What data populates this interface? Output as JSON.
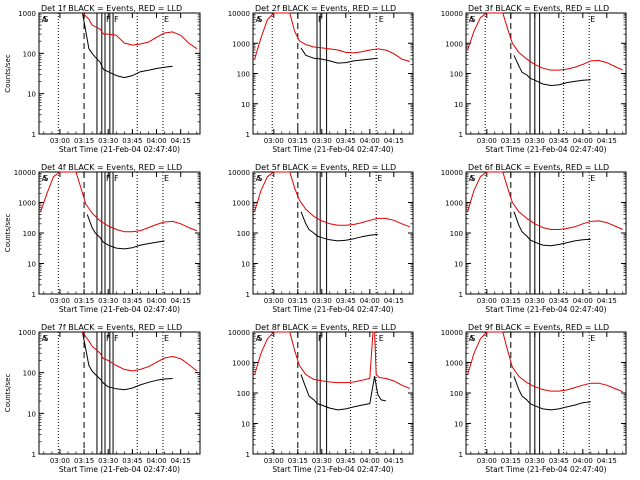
{
  "chart_data": [
    {
      "type": "line",
      "title": "Det 1f BLACK = Events, RED = LLD",
      "xlabel": "Start Time (21-Feb-04 02:47:40)",
      "ylabel": "Counts/sec",
      "y_scale": "log",
      "ylim": [
        1,
        1000
      ],
      "y_ticks": [
        "1",
        "10",
        "100",
        "1000"
      ],
      "x_ticks": [
        "03:00",
        "03:15",
        "03:30",
        "03:45",
        "04:00",
        "04:15"
      ],
      "region_labels": [
        "A",
        "S",
        "F",
        "F",
        "E"
      ],
      "series": [
        {
          "color": "#000000",
          "x": [
            "02:50",
            "02:55",
            "03:00",
            "03:05",
            "03:10",
            "03:14",
            "03:18",
            "03:20",
            "03:22",
            "03:25",
            "03:27",
            "03:30",
            "03:35",
            "03:40",
            "03:45",
            "03:50",
            "03:55",
            "04:00",
            "04:05",
            "04:10"
          ],
          "y": [
            1000,
            1000,
            1000,
            1000,
            1000,
            1000,
            130,
            100,
            80,
            60,
            40,
            35,
            28,
            25,
            28,
            35,
            38,
            42,
            45,
            48
          ]
        },
        {
          "color": "#e00000",
          "x": [
            "03:14",
            "03:18",
            "03:20",
            "03:25",
            "03:27",
            "03:30",
            "03:35",
            "03:40",
            "03:45",
            "03:50",
            "03:55",
            "04:00",
            "04:05",
            "04:10",
            "04:15",
            "04:20",
            "04:25"
          ],
          "y": [
            1000,
            700,
            500,
            400,
            300,
            300,
            280,
            180,
            160,
            170,
            190,
            250,
            320,
            340,
            280,
            180,
            130
          ]
        }
      ]
    },
    {
      "type": "line",
      "title": "Det 2f BLACK = Events, RED = LLD",
      "xlabel": "Start Time (21-Feb-04 02:47:40)",
      "ylabel": "",
      "y_scale": "log",
      "ylim": [
        1,
        10000
      ],
      "y_ticks": [
        "1",
        "10",
        "100",
        "1000",
        "10000"
      ],
      "x_ticks": [
        "03:00",
        "03:15",
        "03:30",
        "03:45",
        "04:00",
        "04:15"
      ],
      "region_labels": [
        "A",
        "S",
        "F",
        "E"
      ],
      "series": [
        {
          "color": "#000000",
          "x": [
            "03:17",
            "03:20",
            "03:25",
            "03:30",
            "03:35",
            "03:40",
            "03:45",
            "03:50",
            "03:55",
            "04:00",
            "04:05"
          ],
          "y": [
            700,
            400,
            320,
            300,
            260,
            220,
            230,
            260,
            280,
            300,
            320
          ]
        },
        {
          "color": "#e00000",
          "x": [
            "02:48",
            "02:52",
            "02:56",
            "03:00",
            "03:05",
            "03:10",
            "03:13",
            "03:16",
            "03:20",
            "03:25",
            "03:30",
            "03:35",
            "03:40",
            "03:45",
            "03:50",
            "03:55",
            "04:00",
            "04:05",
            "04:10",
            "04:15",
            "04:20",
            "04:25"
          ],
          "y": [
            300,
            1500,
            6000,
            10000,
            10000,
            10000,
            2500,
            1200,
            900,
            750,
            700,
            650,
            600,
            500,
            480,
            520,
            600,
            650,
            600,
            450,
            300,
            250
          ]
        }
      ]
    },
    {
      "type": "line",
      "title": "Det 3f BLACK = Events, RED = LLD",
      "xlabel": "Start Time (21-Feb-04 02:47:40)",
      "ylabel": "",
      "y_scale": "log",
      "ylim": [
        1,
        10000
      ],
      "y_ticks": [
        "1",
        "10",
        "100",
        "1000",
        "10000"
      ],
      "x_ticks": [
        "03:00",
        "03:15",
        "03:30",
        "03:45",
        "04:00",
        "04:15"
      ],
      "region_labels": [
        "A",
        "S",
        "E"
      ],
      "series": [
        {
          "color": "#000000",
          "x": [
            "03:17",
            "03:20",
            "03:22",
            "03:25",
            "03:27",
            "03:30",
            "03:35",
            "03:40",
            "03:45",
            "03:50",
            "03:55",
            "04:00",
            "04:05"
          ],
          "y": [
            400,
            180,
            110,
            90,
            70,
            60,
            45,
            40,
            42,
            50,
            55,
            60,
            62
          ]
        },
        {
          "color": "#e00000",
          "x": [
            "02:48",
            "02:52",
            "02:56",
            "03:00",
            "03:05",
            "03:10",
            "03:13",
            "03:16",
            "03:20",
            "03:25",
            "03:30",
            "03:35",
            "03:40",
            "03:45",
            "03:50",
            "03:55",
            "04:00",
            "04:05",
            "04:10",
            "04:15",
            "04:20",
            "04:25"
          ],
          "y": [
            600,
            2500,
            7000,
            10000,
            10000,
            10000,
            3000,
            1000,
            500,
            300,
            200,
            150,
            130,
            130,
            140,
            160,
            200,
            260,
            270,
            230,
            170,
            130
          ]
        }
      ]
    },
    {
      "type": "line",
      "title": "Det 4f BLACK = Events, RED = LLD",
      "xlabel": "Start Time (21-Feb-04 02:47:40)",
      "ylabel": "Counts/sec",
      "y_scale": "log",
      "ylim": [
        1,
        10000
      ],
      "y_ticks": [
        "1",
        "10",
        "100",
        "1000",
        "10000"
      ],
      "x_ticks": [
        "03:00",
        "03:15",
        "03:30",
        "03:45",
        "04:00",
        "04:15"
      ],
      "region_labels": [
        "A",
        "S",
        "F",
        "F",
        "E"
      ],
      "series": [
        {
          "color": "#000000",
          "x": [
            "03:17",
            "03:20",
            "03:22",
            "03:25",
            "03:27",
            "03:30",
            "03:35",
            "03:40",
            "03:45",
            "03:50",
            "03:55",
            "04:00",
            "04:05"
          ],
          "y": [
            400,
            150,
            100,
            70,
            50,
            40,
            32,
            30,
            33,
            40,
            45,
            50,
            55
          ]
        },
        {
          "color": "#e00000",
          "x": [
            "02:48",
            "02:52",
            "02:56",
            "03:00",
            "03:05",
            "03:10",
            "03:13",
            "03:16",
            "03:20",
            "03:25",
            "03:30",
            "03:35",
            "03:40",
            "03:45",
            "03:50",
            "03:55",
            "04:00",
            "04:05",
            "04:10",
            "04:15",
            "04:20",
            "04:25"
          ],
          "y": [
            500,
            2000,
            7000,
            10000,
            10000,
            10000,
            3000,
            900,
            450,
            250,
            170,
            130,
            110,
            110,
            120,
            150,
            190,
            230,
            240,
            200,
            150,
            120
          ]
        }
      ]
    },
    {
      "type": "line",
      "title": "Det 5f BLACK = Events, RED = LLD",
      "xlabel": "Start Time (21-Feb-04 02:47:40)",
      "ylabel": "",
      "y_scale": "log",
      "ylim": [
        1,
        10000
      ],
      "y_ticks": [
        "1",
        "10",
        "100",
        "1000",
        "10000"
      ],
      "x_ticks": [
        "03:00",
        "03:15",
        "03:30",
        "03:45",
        "04:00",
        "04:15"
      ],
      "region_labels": [
        "A",
        "S",
        "E"
      ],
      "series": [
        {
          "color": "#000000",
          "x": [
            "03:17",
            "03:20",
            "03:22",
            "03:25",
            "03:27",
            "03:30",
            "03:35",
            "03:40",
            "03:45",
            "03:50",
            "03:55",
            "04:00",
            "04:05"
          ],
          "y": [
            500,
            200,
            130,
            100,
            80,
            70,
            60,
            55,
            58,
            65,
            75,
            85,
            90
          ]
        },
        {
          "color": "#e00000",
          "x": [
            "02:48",
            "02:52",
            "02:56",
            "03:00",
            "03:05",
            "03:10",
            "03:13",
            "03:16",
            "03:20",
            "03:25",
            "03:30",
            "03:35",
            "03:40",
            "03:45",
            "03:50",
            "03:55",
            "04:00",
            "04:05",
            "04:10",
            "04:15",
            "04:20",
            "04:25"
          ],
          "y": [
            500,
            2500,
            7000,
            10000,
            10000,
            10000,
            3000,
            1200,
            600,
            350,
            250,
            200,
            180,
            180,
            190,
            220,
            260,
            300,
            300,
            260,
            200,
            160
          ]
        }
      ]
    },
    {
      "type": "line",
      "title": "Det 6f BLACK = Events, RED = LLD",
      "xlabel": "Start Time (21-Feb-04 02:47:40)",
      "ylabel": "",
      "y_scale": "log",
      "ylim": [
        1,
        10000
      ],
      "y_ticks": [
        "1",
        "10",
        "100",
        "1000",
        "10000"
      ],
      "x_ticks": [
        "03:00",
        "03:15",
        "03:30",
        "03:45",
        "04:00",
        "04:15"
      ],
      "region_labels": [
        "A",
        "S",
        "E"
      ],
      "series": [
        {
          "color": "#000000",
          "x": [
            "03:17",
            "03:20",
            "03:22",
            "03:25",
            "03:27",
            "03:30",
            "03:35",
            "03:40",
            "03:45",
            "03:50",
            "03:55",
            "04:00",
            "04:05"
          ],
          "y": [
            500,
            180,
            110,
            80,
            60,
            50,
            40,
            38,
            42,
            48,
            55,
            60,
            62
          ]
        },
        {
          "color": "#e00000",
          "x": [
            "02:48",
            "02:52",
            "02:56",
            "03:00",
            "03:05",
            "03:10",
            "03:13",
            "03:16",
            "03:20",
            "03:25",
            "03:30",
            "03:35",
            "03:40",
            "03:45",
            "03:50",
            "03:55",
            "04:00",
            "04:05",
            "04:10",
            "04:15",
            "04:20",
            "04:25"
          ],
          "y": [
            500,
            2500,
            7000,
            10000,
            10000,
            10000,
            3000,
            1000,
            500,
            300,
            200,
            150,
            130,
            130,
            140,
            160,
            200,
            240,
            250,
            220,
            170,
            130
          ]
        }
      ]
    },
    {
      "type": "line",
      "title": "Det 7f BLACK = Events, RED = LLD",
      "xlabel": "Start Time (21-Feb-04 02:47:40)",
      "ylabel": "Counts/sec",
      "y_scale": "log",
      "ylim": [
        1,
        1000
      ],
      "y_ticks": [
        "1",
        "10",
        "100",
        "1000"
      ],
      "x_ticks": [
        "03:00",
        "03:15",
        "03:30",
        "03:45",
        "04:00",
        "04:15"
      ],
      "region_labels": [
        "A",
        "S",
        "F",
        "F",
        "E"
      ],
      "series": [
        {
          "color": "#000000",
          "x": [
            "02:50",
            "02:55",
            "03:00",
            "03:05",
            "03:10",
            "03:14",
            "03:18",
            "03:20",
            "03:22",
            "03:25",
            "03:27",
            "03:30",
            "03:35",
            "03:40",
            "03:45",
            "03:50",
            "03:55",
            "04:00",
            "04:05",
            "04:10"
          ],
          "y": [
            1000,
            1000,
            1000,
            1000,
            1000,
            1000,
            150,
            110,
            90,
            70,
            55,
            45,
            40,
            38,
            42,
            50,
            58,
            65,
            70,
            72
          ]
        },
        {
          "color": "#e00000",
          "x": [
            "03:14",
            "03:18",
            "03:20",
            "03:25",
            "03:27",
            "03:30",
            "03:35",
            "03:40",
            "03:45",
            "03:50",
            "03:55",
            "04:00",
            "04:05",
            "04:10",
            "04:15",
            "04:20",
            "04:25"
          ],
          "y": [
            1000,
            600,
            450,
            300,
            220,
            200,
            150,
            120,
            110,
            120,
            140,
            180,
            230,
            250,
            220,
            160,
            110
          ]
        }
      ]
    },
    {
      "type": "line",
      "title": "Det 8f BLACK = Events, RED = LLD",
      "xlabel": "Start Time (21-Feb-04 02:47:40)",
      "ylabel": "",
      "y_scale": "log",
      "ylim": [
        1,
        10000
      ],
      "y_ticks": [
        "1",
        "10",
        "100",
        "1000",
        "10000"
      ],
      "x_ticks": [
        "03:00",
        "03:15",
        "03:30",
        "03:45",
        "04:00",
        "04:15"
      ],
      "region_labels": [
        "A",
        "S",
        "F",
        "E"
      ],
      "series": [
        {
          "color": "#000000",
          "x": [
            "03:17",
            "03:20",
            "03:22",
            "03:25",
            "03:27",
            "03:30",
            "03:35",
            "03:40",
            "03:45",
            "03:50",
            "03:55",
            "04:00",
            "04:03",
            "04:05",
            "04:07",
            "04:10"
          ],
          "y": [
            400,
            150,
            80,
            60,
            45,
            40,
            32,
            28,
            30,
            35,
            40,
            45,
            350,
            90,
            60,
            55
          ]
        },
        {
          "color": "#e00000",
          "x": [
            "02:48",
            "02:52",
            "02:56",
            "03:00",
            "03:05",
            "03:10",
            "03:13",
            "03:16",
            "03:20",
            "03:25",
            "03:30",
            "03:35",
            "03:40",
            "03:45",
            "03:50",
            "03:55",
            "04:00",
            "04:02",
            "04:03",
            "04:04",
            "04:06",
            "04:10",
            "04:15",
            "04:20",
            "04:25"
          ],
          "y": [
            400,
            2000,
            6000,
            10000,
            10000,
            10000,
            2500,
            800,
            400,
            280,
            250,
            230,
            220,
            220,
            230,
            260,
            300,
            10000,
            10000,
            400,
            320,
            300,
            250,
            180,
            140
          ]
        }
      ]
    },
    {
      "type": "line",
      "title": "Det 9f BLACK = Events, RED = LLD",
      "xlabel": "Start Time (21-Feb-04 02:47:40)",
      "ylabel": "",
      "y_scale": "log",
      "ylim": [
        1,
        10000
      ],
      "y_ticks": [
        "1",
        "10",
        "100",
        "1000",
        "10000"
      ],
      "x_ticks": [
        "03:00",
        "03:15",
        "03:30",
        "03:45",
        "04:00",
        "04:15"
      ],
      "region_labels": [
        "A",
        "S",
        "E"
      ],
      "series": [
        {
          "color": "#000000",
          "x": [
            "03:17",
            "03:20",
            "03:22",
            "03:25",
            "03:27",
            "03:30",
            "03:35",
            "03:40",
            "03:45",
            "03:50",
            "03:55",
            "04:00",
            "04:05"
          ],
          "y": [
            350,
            130,
            80,
            60,
            45,
            38,
            30,
            28,
            30,
            35,
            40,
            48,
            52
          ]
        },
        {
          "color": "#e00000",
          "x": [
            "02:48",
            "02:52",
            "02:56",
            "03:00",
            "03:05",
            "03:10",
            "03:13",
            "03:16",
            "03:20",
            "03:25",
            "03:30",
            "03:35",
            "03:40",
            "03:45",
            "03:50",
            "03:55",
            "04:00",
            "04:05",
            "04:10",
            "04:15",
            "04:20",
            "04:25"
          ],
          "y": [
            400,
            2000,
            6000,
            10000,
            10000,
            10000,
            2500,
            700,
            350,
            220,
            160,
            130,
            115,
            115,
            125,
            150,
            180,
            210,
            210,
            180,
            140,
            110
          ]
        }
      ]
    }
  ]
}
